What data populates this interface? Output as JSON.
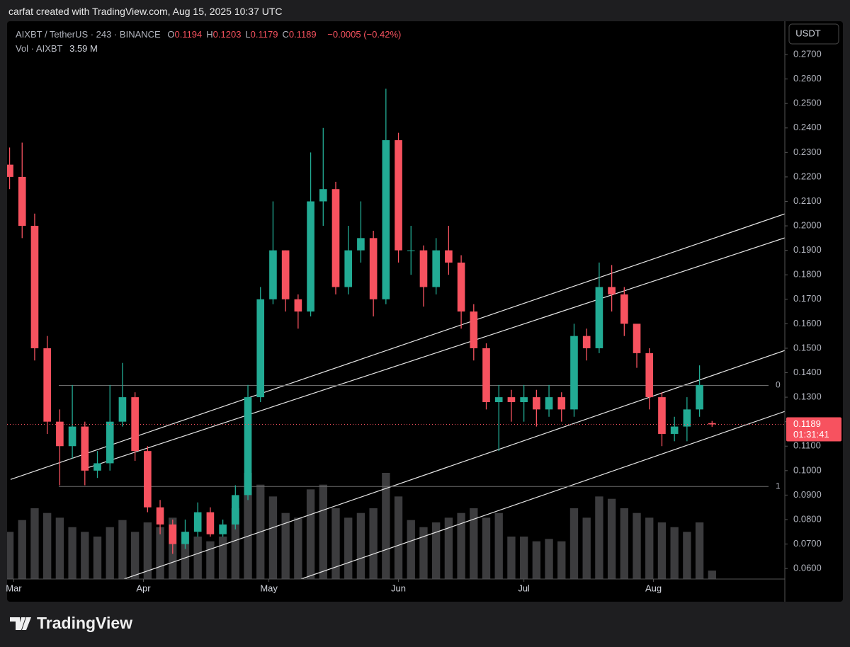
{
  "chart_data": {
    "type": "candlestick",
    "credit": "carfat created with TradingView.com, Aug 15, 2025 10:37 UTC",
    "title": "AIXBT / TetherUS · 243 · BINANCE",
    "ohlc": [
      {
        "label": "O",
        "value": 0.1194
      },
      {
        "label": "H",
        "value": 0.1203
      },
      {
        "label": "L",
        "value": 0.1179
      },
      {
        "label": "C",
        "value": 0.1189
      }
    ],
    "change": "−0.0005 (−0.42%)",
    "volume_title": "Vol · AIXBT",
    "volume_label": "3.59 M",
    "currency": "USDT",
    "brand": "TradingView",
    "up_color": "#22ab94",
    "down_color": "#f7525f",
    "volume_color": "#3c3c3e",
    "line_color": "#e6e6e6",
    "fib_color": "#6a6a6a",
    "opens": [
      0.225,
      0.22,
      0.2,
      0.15,
      0.12,
      0.11,
      0.118,
      0.1,
      0.103,
      0.12,
      0.13,
      0.108,
      0.085,
      0.078,
      0.07,
      0.075,
      0.083,
      0.074,
      0.078,
      0.09,
      0.13,
      0.17,
      0.19,
      0.17,
      0.165,
      0.21,
      0.215,
      0.175,
      0.19,
      0.195,
      0.17,
      0.235,
      0.19,
      0.19,
      0.175,
      0.19,
      0.185,
      0.165,
      0.15,
      0.128,
      0.13,
      0.128,
      0.13,
      0.125,
      0.13,
      0.125,
      0.155,
      0.15,
      0.175,
      0.172,
      0.16,
      0.148,
      0.13,
      0.115,
      0.118,
      0.125,
      0.1194
    ],
    "highs": [
      0.232,
      0.234,
      0.205,
      0.155,
      0.125,
      0.135,
      0.12,
      0.108,
      0.135,
      0.144,
      0.132,
      0.11,
      0.088,
      0.08,
      0.08,
      0.087,
      0.085,
      0.08,
      0.094,
      0.135,
      0.175,
      0.21,
      0.19,
      0.172,
      0.23,
      0.24,
      0.218,
      0.2,
      0.21,
      0.198,
      0.256,
      0.238,
      0.2,
      0.192,
      0.195,
      0.2,
      0.188,
      0.168,
      0.152,
      0.135,
      0.133,
      0.135,
      0.133,
      0.135,
      0.132,
      0.16,
      0.158,
      0.185,
      0.184,
      0.175,
      0.153,
      0.15,
      0.132,
      0.122,
      0.13,
      0.143,
      0.1203
    ],
    "lows": [
      0.215,
      0.195,
      0.145,
      0.115,
      0.094,
      0.105,
      0.094,
      0.097,
      0.1,
      0.118,
      0.104,
      0.083,
      0.074,
      0.066,
      0.068,
      0.073,
      0.073,
      0.073,
      0.076,
      0.088,
      0.128,
      0.168,
      0.165,
      0.158,
      0.163,
      0.2,
      0.172,
      0.172,
      0.185,
      0.163,
      0.168,
      0.185,
      0.18,
      0.167,
      0.172,
      0.18,
      0.158,
      0.145,
      0.125,
      0.108,
      0.12,
      0.12,
      0.118,
      0.122,
      0.12,
      0.122,
      0.145,
      0.148,
      0.165,
      0.155,
      0.142,
      0.125,
      0.11,
      0.112,
      0.112,
      0.122,
      0.1179
    ],
    "closes": [
      0.22,
      0.2,
      0.15,
      0.12,
      0.11,
      0.118,
      0.1,
      0.103,
      0.12,
      0.13,
      0.108,
      0.085,
      0.078,
      0.07,
      0.075,
      0.083,
      0.074,
      0.078,
      0.09,
      0.13,
      0.17,
      0.19,
      0.17,
      0.165,
      0.21,
      0.215,
      0.175,
      0.19,
      0.195,
      0.17,
      0.235,
      0.19,
      0.19,
      0.175,
      0.19,
      0.185,
      0.165,
      0.15,
      0.128,
      0.13,
      0.128,
      0.13,
      0.125,
      0.13,
      0.125,
      0.155,
      0.15,
      0.175,
      0.172,
      0.16,
      0.148,
      0.13,
      0.115,
      0.118,
      0.125,
      0.135,
      0.1189
    ],
    "volumes": [
      20,
      25,
      30,
      28,
      26,
      22,
      20,
      18,
      22,
      25,
      20,
      24,
      22,
      26,
      20,
      18,
      16,
      18,
      30,
      45,
      40,
      35,
      28,
      26,
      38,
      40,
      30,
      26,
      28,
      30,
      45,
      35,
      25,
      22,
      24,
      26,
      28,
      30,
      26,
      28,
      18,
      18,
      16,
      17,
      16,
      30,
      26,
      35,
      34,
      30,
      28,
      26,
      24,
      22,
      20,
      24,
      3.59
    ],
    "xlim": [
      -0.2,
      61.8
    ],
    "xticks": [
      {
        "value": 0.33,
        "label": "Mar"
      },
      {
        "value": 10.67,
        "label": "Apr"
      },
      {
        "value": 20.67,
        "label": "May"
      },
      {
        "value": 31,
        "label": "Jun"
      },
      {
        "value": 41,
        "label": "Jul"
      },
      {
        "value": 51.33,
        "label": "Aug"
      }
    ],
    "ylim": [
      0.0557,
      0.2836
    ],
    "yticks": [
      {
        "value": 0.06,
        "label": "0.0600"
      },
      {
        "value": 0.07,
        "label": "0.0700"
      },
      {
        "value": 0.08,
        "label": "0.0800"
      },
      {
        "value": 0.09,
        "label": "0.0900"
      },
      {
        "value": 0.1,
        "label": "0.1000"
      },
      {
        "value": 0.11,
        "label": "0.1100"
      },
      {
        "value": 0.12,
        "label": "0.1200"
      },
      {
        "value": 0.13,
        "label": "0.1300"
      },
      {
        "value": 0.14,
        "label": "0.1400"
      },
      {
        "value": 0.15,
        "label": "0.1500"
      },
      {
        "value": 0.16,
        "label": "0.1600"
      },
      {
        "value": 0.17,
        "label": "0.1700"
      },
      {
        "value": 0.18,
        "label": "0.1800"
      },
      {
        "value": 0.19,
        "label": "0.1900"
      },
      {
        "value": 0.2,
        "label": "0.2000"
      },
      {
        "value": 0.21,
        "label": "0.2100"
      },
      {
        "value": 0.22,
        "label": "0.2200"
      },
      {
        "value": 0.23,
        "label": "0.2300"
      },
      {
        "value": 0.24,
        "label": "0.2400"
      },
      {
        "value": 0.25,
        "label": "0.2500"
      },
      {
        "value": 0.26,
        "label": "0.2600"
      },
      {
        "value": 0.27,
        "label": "0.2700"
      }
    ],
    "trendlines": [
      {
        "x": [
          0.08,
          61.8
        ],
        "y": [
          0.0964,
          0.2049
        ]
      },
      {
        "x": [
          6.01,
          61.8
        ],
        "y": [
          0.1008,
          0.1951
        ]
      },
      {
        "x": [
          9.12,
          61.8
        ],
        "y": [
          0.0557,
          0.1491
        ]
      },
      {
        "x": [
          23.23,
          61.8
        ],
        "y": [
          0.0557,
          0.1242
        ]
      }
    ],
    "fib": {
      "x": [
        3.92,
        60.5
      ],
      "levels": [
        {
          "value": 0.1348,
          "label": "0"
        },
        {
          "value": 0.0935,
          "label": "1"
        }
      ]
    },
    "last_price": {
      "value": 0.1189,
      "label": "0.1189"
    },
    "countdown": "01:31:41"
  }
}
